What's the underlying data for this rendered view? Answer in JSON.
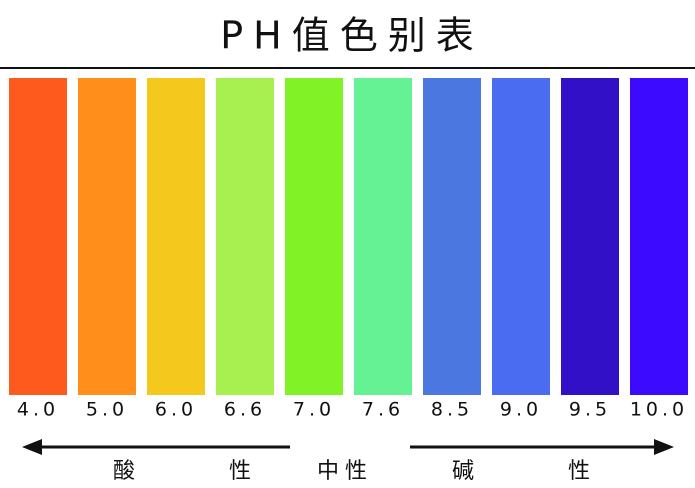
{
  "title": "PH值色别表",
  "swatches": [
    {
      "label": "4.0",
      "color": "#ff5a1e"
    },
    {
      "label": "5.0",
      "color": "#ff8e1a"
    },
    {
      "label": "6.0",
      "color": "#f5c81e"
    },
    {
      "label": "6.6",
      "color": "#a8f050"
    },
    {
      "label": "7.0",
      "color": "#80f226"
    },
    {
      "label": "7.6",
      "color": "#64f294"
    },
    {
      "label": "8.5",
      "color": "#4a78e0"
    },
    {
      "label": "9.0",
      "color": "#4a6cf0"
    },
    {
      "label": "9.5",
      "color": "#3210c8"
    },
    {
      "label": "10.0",
      "color": "#3c0aff"
    }
  ],
  "scale": {
    "acid": "酸性",
    "neutral": "中性",
    "base": "碱性"
  }
}
